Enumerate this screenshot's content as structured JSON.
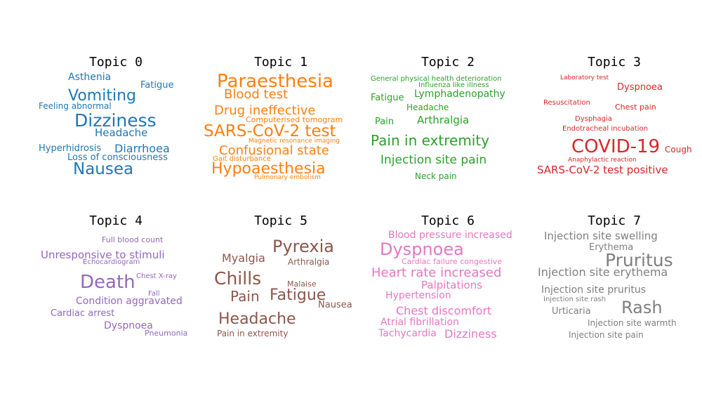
{
  "topics": [
    {
      "title": "Topic 0",
      "color": "#1f77b4",
      "words": [
        "Asthenia",
        "Fatigue",
        "Vomiting",
        "Feeling abnormal",
        "Dizziness",
        "Headache",
        "Hyperhidrosis",
        "Diarrhoea",
        "Loss of consciousness",
        "Nausea"
      ]
    },
    {
      "title": "Topic 1",
      "color": "#ff7f0e",
      "words": [
        "Paraesthesia",
        "Blood test",
        "Drug ineffective",
        "Computerised tomogram",
        "SARS-CoV-2 test",
        "Confusional state",
        "Magnetic resonance imaging",
        "Gait disturbance",
        "Hypoaesthesia",
        "Pulmonary embolism"
      ]
    },
    {
      "title": "Topic 2",
      "color": "#2ca02c",
      "words": [
        "General physical health deterioration",
        "Influenza like illness",
        "Fatigue",
        "Lymphadenopathy",
        "Headache",
        "Pain",
        "Arthralgia",
        "Pain in extremity",
        "Injection site pain",
        "Neck pain"
      ]
    },
    {
      "title": "Topic 3",
      "color": "#d62728",
      "words": [
        "Laboratory test",
        "Dyspnoea",
        "Resuscitation",
        "Chest pain",
        "Dysphagia",
        "Endotracheal incubation",
        "COVID-19",
        "Cough",
        "Anaphylactic reaction",
        "SARS-CoV-2 test positive"
      ]
    },
    {
      "title": "Topic 4",
      "color": "#9467bd",
      "words": [
        "Full blood count",
        "Unresponsive to stimuli",
        "Echocardiogram",
        "Death",
        "Chest X-ray",
        "Fall",
        "Condition aggravated",
        "Cardiac arrest",
        "Dyspnoea",
        "Pneumonia"
      ]
    },
    {
      "title": "Topic 5",
      "color": "#8c564b",
      "words": [
        "Pyrexia",
        "Myalgia",
        "Arthralgia",
        "Chills",
        "Malaise",
        "Pain",
        "Fatigue",
        "Nausea",
        "Headache",
        "Pain in extremity"
      ]
    },
    {
      "title": "Topic 6",
      "color": "#e377c2",
      "words": [
        "Blood pressure increased",
        "Dyspnoea",
        "Cardiac failure congestive",
        "Heart rate increased",
        "Palpitations",
        "Hypertension",
        "Chest discomfort",
        "Atrial fibrillation",
        "Tachycardia",
        "Dizziness"
      ]
    },
    {
      "title": "Topic 7",
      "color": "#7f7f7f",
      "words": [
        "Injection site swelling",
        "Erythema",
        "Pruritus",
        "Injection site erythema",
        "Injection site pruritus",
        "Injection site rash",
        "Rash",
        "Urticaria",
        "Injection site warmth",
        "Injection site pain"
      ]
    }
  ]
}
